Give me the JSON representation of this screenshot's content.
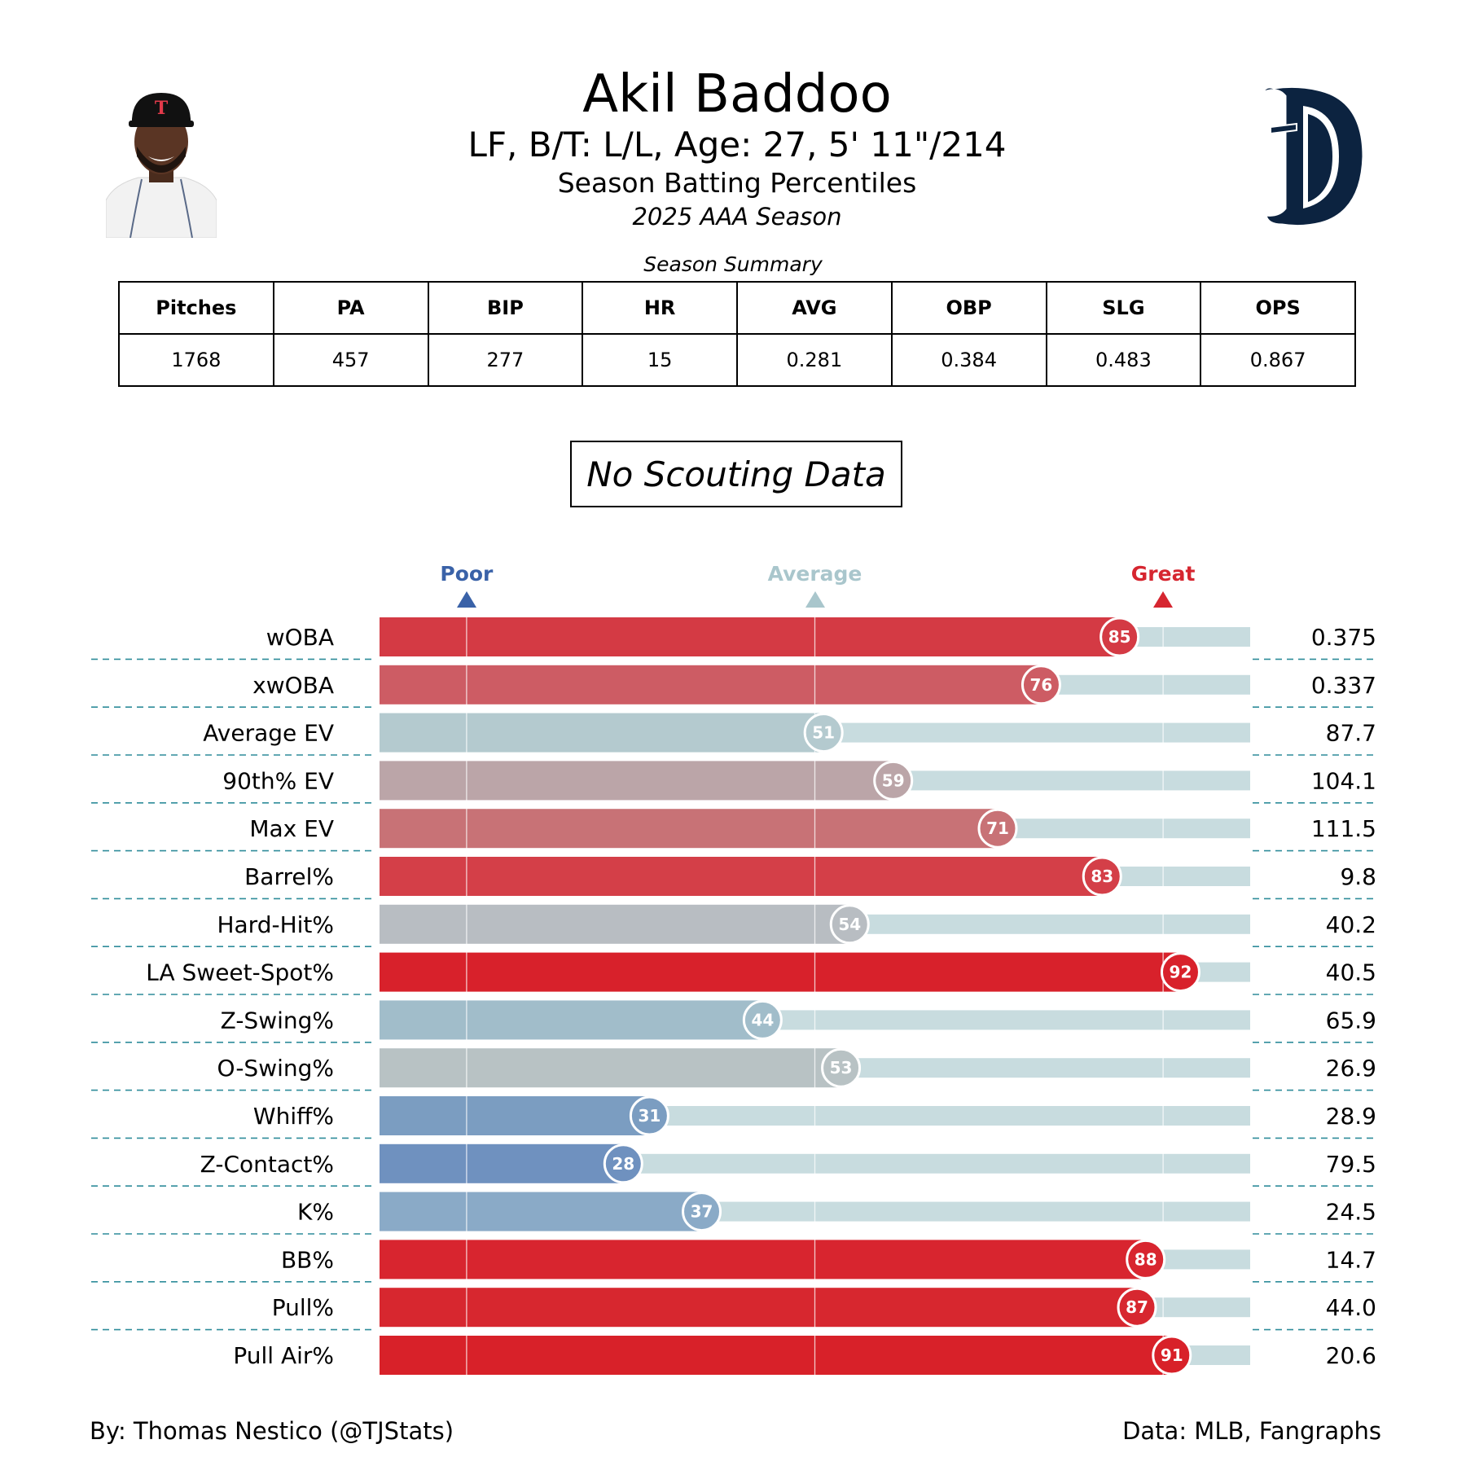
{
  "header": {
    "name": "Akil Baddoo",
    "subtitle": "LF, B/T: L/L, Age: 27, 5' 11\"/214",
    "description": "Season Batting Percentiles",
    "season": "2025 AAA Season"
  },
  "summary": {
    "title": "Season Summary",
    "columns": [
      "Pitches",
      "PA",
      "BIP",
      "HR",
      "AVG",
      "OBP",
      "SLG",
      "OPS"
    ],
    "values": [
      "1768",
      "457",
      "277",
      "15",
      "0.281",
      "0.384",
      "0.483",
      "0.867"
    ]
  },
  "scouting_text": "No Scouting Data",
  "legend": {
    "poor": "Poor",
    "average": "Average",
    "great": "Great",
    "colors": {
      "poor": "#3a62a8",
      "average": "#a9c6cc",
      "great": "#d62630"
    }
  },
  "chart_data": {
    "type": "bar",
    "orientation": "horizontal",
    "xlim": [
      0,
      100
    ],
    "reference_lines": [
      10,
      50,
      90
    ],
    "categories": [
      "wOBA",
      "xwOBA",
      "Average EV",
      "90th% EV",
      "Max EV",
      "Barrel%",
      "Hard-Hit%",
      "LA Sweet-Spot%",
      "Z-Swing%",
      "O-Swing%",
      "Whiff%",
      "Z-Contact%",
      "K%",
      "BB%",
      "Pull%",
      "Pull Air%"
    ],
    "percentiles": [
      85,
      76,
      51,
      59,
      71,
      83,
      54,
      92,
      44,
      53,
      31,
      28,
      37,
      88,
      87,
      91
    ],
    "stat_values": [
      "0.375",
      "0.337",
      "87.7",
      "104.1",
      "111.5",
      "9.8",
      "40.2",
      "40.5",
      "65.9",
      "26.9",
      "28.9",
      "79.5",
      "24.5",
      "14.7",
      "44.0",
      "20.6"
    ],
    "bar_colors": [
      "#d43a44",
      "#cd5c64",
      "#b4cacf",
      "#bba5a8",
      "#c87276",
      "#d43f48",
      "#b8bdc2",
      "#d8212b",
      "#a1bdca",
      "#b8c2c4",
      "#7b9dc1",
      "#6f91bf",
      "#8aaac7",
      "#d8252f",
      "#d7272f",
      "#d82129"
    ],
    "track_color": "#c8dcdf"
  },
  "footer": {
    "credit": "By: Thomas Nestico (@TJStats)",
    "source": "Data: MLB, Fangraphs"
  }
}
